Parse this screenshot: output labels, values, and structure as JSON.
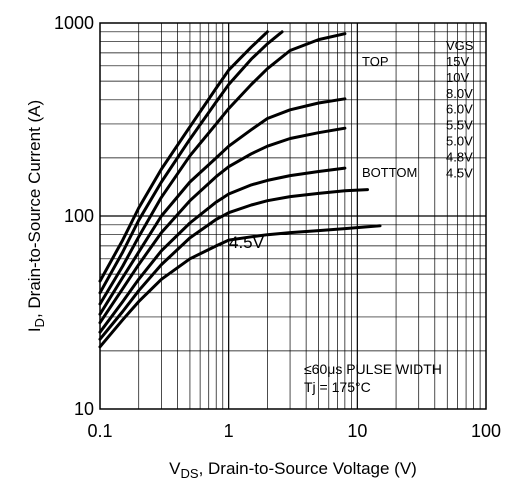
{
  "chart_data": {
    "type": "line",
    "xscale": "log",
    "yscale": "log",
    "xlim": [
      0.1,
      100
    ],
    "ylim": [
      10,
      1000
    ],
    "grid": true,
    "x_ticks": [
      "0.1",
      "1",
      "10",
      "100"
    ],
    "y_ticks": [
      "10",
      "100",
      "1000"
    ],
    "xlabel": {
      "main": "V",
      "sub": "DS",
      "rest": ", Drain-to-Source Voltage (V)"
    },
    "ylabel": {
      "main": "I",
      "sub": "D",
      "rest": ", Drain-to-Source Current (A)"
    },
    "legend": {
      "header": "VGS",
      "top_label": "TOP",
      "bottom_label": "BOTTOM",
      "entries": [
        "15V",
        "10V",
        "8.0V",
        "6.0V",
        "5.5V",
        "5.0V",
        "4.8V",
        "4.5V"
      ]
    },
    "curve_label": "4.5V",
    "annotation": {
      "line1": "≤60μs PULSE WIDTH",
      "line2": "Tj = 175°C"
    },
    "series": [
      {
        "x": [
          0.1,
          0.15,
          0.2,
          0.3,
          0.5,
          0.8,
          1,
          1.5,
          2
        ],
        "y": [
          46,
          75,
          110,
          175,
          290,
          460,
          570,
          750,
          900
        ]
      },
      {
        "x": [
          0.1,
          0.15,
          0.2,
          0.3,
          0.5,
          0.8,
          1,
          1.5,
          2,
          2.6
        ],
        "y": [
          40,
          65,
          95,
          150,
          250,
          390,
          480,
          650,
          780,
          900
        ]
      },
      {
        "x": [
          0.1,
          0.15,
          0.2,
          0.3,
          0.5,
          0.8,
          1,
          1.5,
          2,
          3,
          5,
          8
        ],
        "y": [
          35,
          55,
          78,
          125,
          205,
          300,
          360,
          480,
          580,
          720,
          820,
          880
        ]
      },
      {
        "x": [
          0.1,
          0.15,
          0.2,
          0.3,
          0.5,
          0.8,
          1,
          1.5,
          2,
          3,
          5,
          8
        ],
        "y": [
          31,
          48,
          65,
          100,
          150,
          200,
          230,
          280,
          320,
          355,
          385,
          405
        ]
      },
      {
        "x": [
          0.1,
          0.15,
          0.2,
          0.3,
          0.5,
          0.8,
          1,
          1.5,
          2,
          3,
          5,
          8
        ],
        "y": [
          28,
          42,
          56,
          82,
          120,
          160,
          180,
          210,
          230,
          252,
          270,
          285
        ]
      },
      {
        "x": [
          0.1,
          0.15,
          0.2,
          0.3,
          0.5,
          0.8,
          1,
          1.5,
          2,
          3,
          5,
          8
        ],
        "y": [
          25,
          36,
          47,
          66,
          92,
          118,
          130,
          145,
          153,
          162,
          170,
          177
        ]
      },
      {
        "x": [
          0.1,
          0.15,
          0.2,
          0.3,
          0.5,
          0.8,
          1,
          1.5,
          2,
          3,
          5,
          8,
          12
        ],
        "y": [
          23,
          32,
          41,
          56,
          77,
          96,
          104,
          114,
          120,
          126,
          131,
          135,
          137
        ]
      },
      {
        "x": [
          0.1,
          0.15,
          0.2,
          0.3,
          0.5,
          0.8,
          1,
          1.5,
          2,
          3,
          5,
          8,
          15
        ],
        "y": [
          21,
          29,
          36,
          47,
          60,
          70,
          75,
          78,
          80,
          82,
          84,
          86,
          89
        ]
      }
    ]
  }
}
